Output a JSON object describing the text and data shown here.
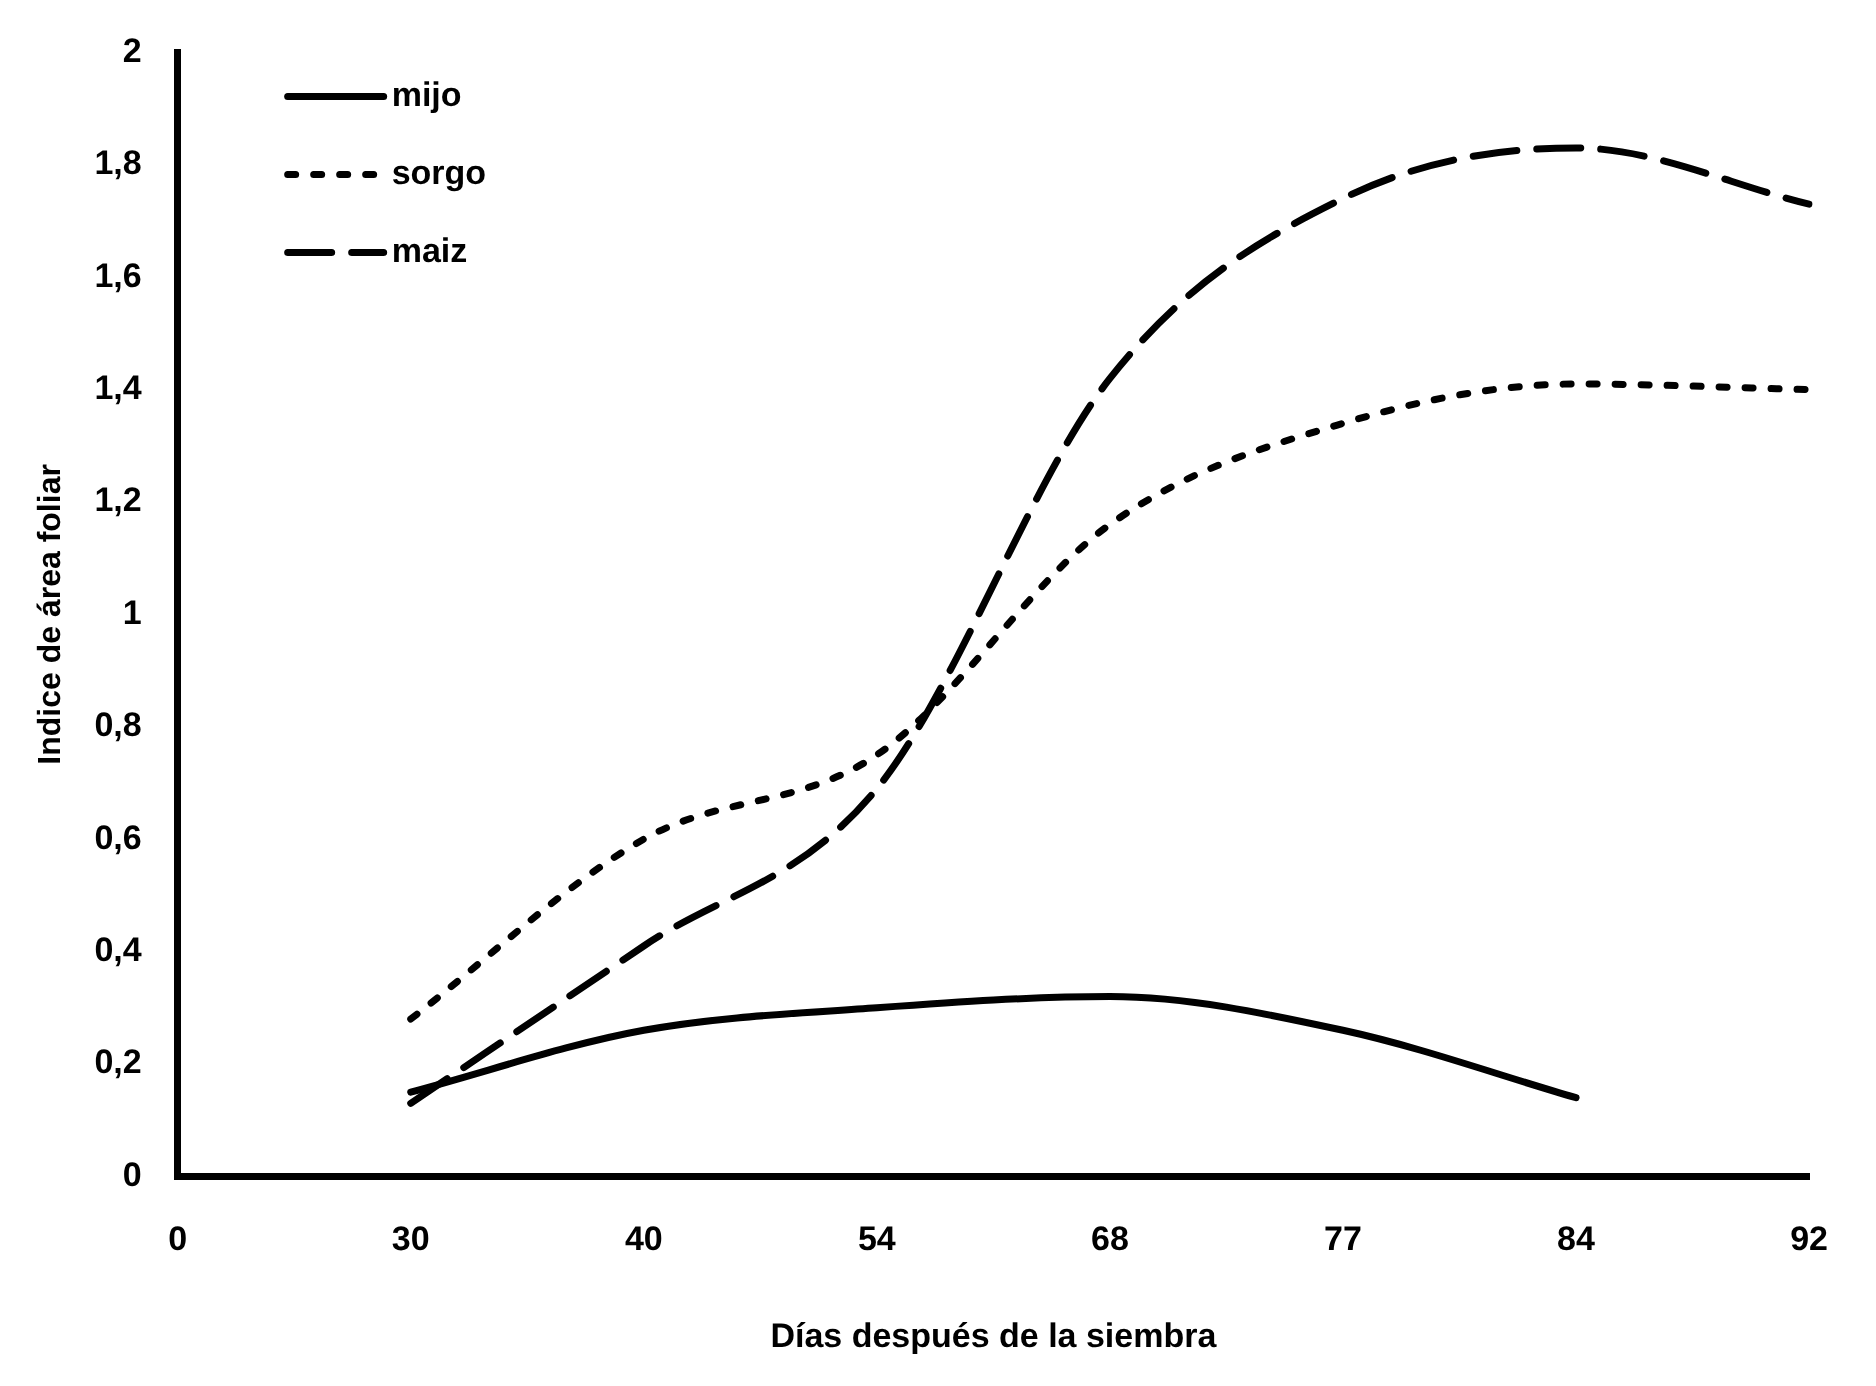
{
  "chart_data": {
    "type": "line",
    "xlabel": "Días después de la siembra",
    "ylabel": "Indice de área foliar",
    "categories": [
      "0",
      "30",
      "40",
      "54",
      "68",
      "77",
      "84",
      "92"
    ],
    "series": [
      {
        "name": "mijo",
        "color": "#000000",
        "line_style": "solid",
        "values": [
          null,
          0.15,
          0.26,
          0.3,
          0.32,
          0.26,
          0.14,
          null
        ]
      },
      {
        "name": "sorgo",
        "color": "#000000",
        "line_style": "dotted",
        "values": [
          null,
          0.28,
          0.6,
          0.75,
          1.16,
          1.34,
          1.41,
          1.4
        ]
      },
      {
        "name": "maiz",
        "color": "#000000",
        "line_style": "dashed",
        "values": [
          null,
          0.13,
          0.41,
          0.69,
          1.42,
          1.74,
          1.83,
          1.73
        ]
      }
    ],
    "ylim": [
      0,
      2
    ],
    "yticks": [
      0,
      {
        "value": 0.2,
        "label": "0,2"
      },
      {
        "value": 0.4,
        "label": "0,4"
      },
      {
        "value": 0.6,
        "label": "0,6"
      },
      {
        "value": 0.8,
        "label": "0,8"
      },
      1,
      {
        "value": 1.2,
        "label": "1,2"
      },
      {
        "value": 1.4,
        "label": "1,4"
      },
      {
        "value": 1.6,
        "label": "1,6"
      },
      {
        "value": 1.8,
        "label": "1,8"
      },
      2
    ],
    "grid": false,
    "legend": "top left",
    "marker": "none"
  }
}
